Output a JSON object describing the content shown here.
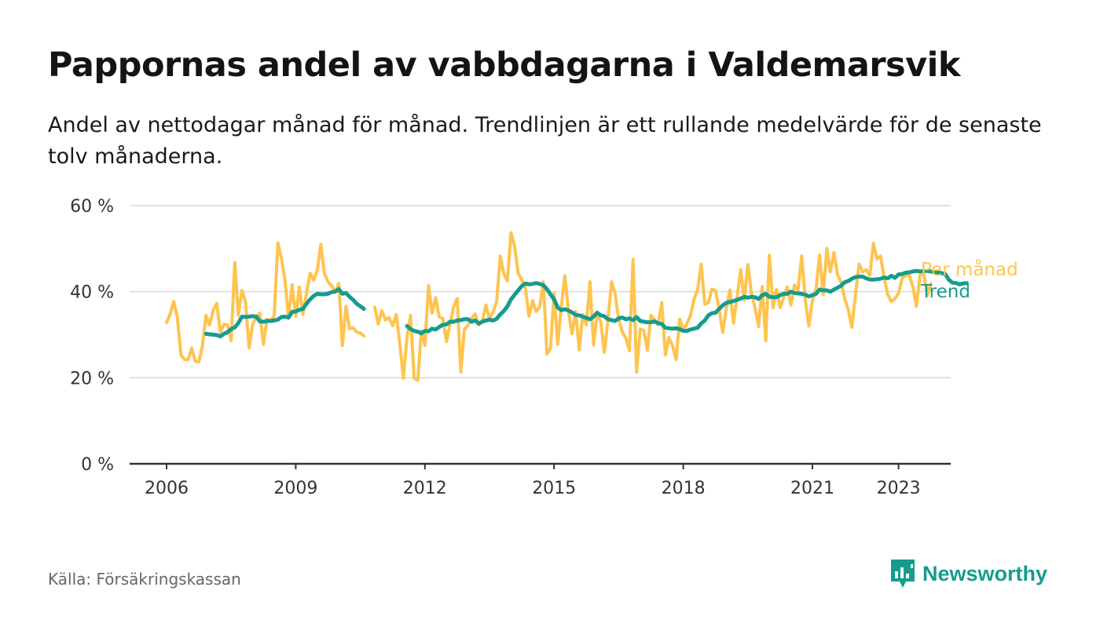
{
  "header": {
    "title": "Pappornas andel av vabbdagarna i Valdemarsvik",
    "subtitle": "Andel av nettodagar månad för månad. Trendlinjen är ett rullande medelvärde för de senaste tolv månaderna."
  },
  "footer": {
    "source": "Källa: Försäkringskassan",
    "brand": "Newsworthy",
    "brand_icon": "newsworthy-logo-icon"
  },
  "colors": {
    "monthly": "#fec44f",
    "trend": "#169c8e",
    "grid": "#d9d9d9",
    "axis": "#333333",
    "text": "#333333"
  },
  "chart_data": {
    "type": "line",
    "x_unit": "year (decimal, monthly)",
    "ylim": [
      0,
      60
    ],
    "yticks": [
      0,
      20,
      40,
      60
    ],
    "ytick_labels": [
      "0 %",
      "20 %",
      "40 %",
      "60 %"
    ],
    "xticks": [
      2006,
      2009,
      2012,
      2015,
      2018,
      2021,
      2023
    ],
    "xtick_labels": [
      "2006",
      "2009",
      "2012",
      "2015",
      "2018",
      "2021",
      "2023"
    ],
    "grid": "horizontal",
    "legend": "end-of-line labels (right)",
    "series": [
      {
        "name": "Per månad",
        "color": "#fec44f",
        "segments": [
          {
            "start_x": 2006.0,
            "step": 0.0833333,
            "values": [
              32.8,
              34.8,
              37.7,
              34.0,
              25.3,
              24.2,
              24.2,
              26.9,
              23.8,
              23.7,
              27.5,
              34.5,
              32.3,
              35.7,
              37.3,
              30.6,
              32.4,
              32.3,
              28.6,
              46.8,
              34.5,
              40.3,
              37.6,
              26.9,
              32.4,
              34.2,
              35.0,
              27.8,
              33.6,
              33.2,
              34.4,
              51.3,
              47.8,
              42.6,
              33.8,
              41.6,
              34.3,
              41.1,
              34.7,
              39.6,
              44.3,
              42.7,
              45.0,
              51.0,
              44.2,
              42.3,
              41.4,
              39.9,
              41.9,
              27.5,
              36.6,
              31.4,
              31.6,
              30.6,
              30.4,
              29.7
            ]
          },
          {
            "start_x": 2010.8333,
            "step": 0.0833333,
            "values": [
              36.4,
              32.5,
              35.6,
              33.4,
              34.0,
              32.1,
              34.7,
              28.0,
              19.9,
              29.4,
              34.5,
              19.9,
              19.4,
              30.8,
              27.5,
              41.4,
              35.0,
              38.6,
              34.1,
              33.8,
              28.4,
              32.4,
              36.5,
              38.4,
              21.3,
              31.2,
              32.2,
              33.8,
              34.8,
              32.2,
              33.3,
              36.9,
              33.7,
              35.3,
              37.7,
              48.3,
              44.1,
              42.5,
              53.7,
              50.5,
              44.3,
              42.7,
              40.9,
              34.3,
              37.9,
              35.4,
              36.4,
              42.3,
              25.5,
              26.8,
              39.6,
              27.8,
              36.4,
              43.7,
              35.4,
              30.2,
              35.4,
              26.5,
              34.7,
              32.3,
              42.3,
              27.6,
              34.7,
              33.0,
              25.9,
              33.3,
              42.3,
              39.5,
              33.6,
              30.6,
              29.2,
              26.3,
              47.5,
              21.3,
              31.3,
              31.0,
              26.4,
              34.5,
              33.4,
              32.3,
              37.5,
              25.3,
              29.3,
              27.4,
              24.2,
              33.6,
              31.2,
              32.5,
              34.4,
              38.2,
              40.5,
              46.4,
              37.1,
              37.5,
              40.6,
              40.2,
              36.0,
              30.5,
              36.2,
              40.4,
              32.7,
              38.7,
              45.1,
              38.0,
              46.3,
              39.6,
              36.3,
              31.9,
              41.2,
              28.6,
              48.5,
              36.3,
              40.5,
              36.3,
              38.6,
              41.1,
              36.9,
              41.5,
              40.4,
              48.3,
              38.1,
              32.0,
              38.0,
              40.6,
              48.5,
              39.3,
              50.0,
              44.6,
              49.1,
              43.9,
              42.2,
              38.4,
              35.7,
              31.7,
              39.4,
              46.4,
              44.6,
              45.1,
              43.8,
              51.2,
              47.6,
              48.3,
              43.1,
              39.3,
              37.7,
              38.4,
              39.6,
              43.2,
              43.7,
              43.8,
              41.1,
              36.6,
              43.8,
              44.4,
              39.1,
              41.9
            ]
          }
        ]
      },
      {
        "name": "Trend",
        "color": "#169c8e",
        "segments": [
          {
            "start_x": 2006.9167,
            "step": 0.0833333,
            "values": [
              30.2,
              30.1,
              30.0,
              29.9,
              29.6,
              30.2,
              30.6,
              31.3,
              31.7,
              32.7,
              34.2,
              34.1,
              34.2,
              34.3,
              34.2,
              33.1,
              33.0,
              33.2,
              33.2,
              33.3,
              33.5,
              34.1,
              34.2,
              34.0,
              35.3,
              35.4,
              35.8,
              36.0,
              37.2,
              38.2,
              39.0,
              39.5,
              39.4,
              39.4,
              39.5,
              39.9,
              40.0,
              40.6,
              39.5,
              39.7,
              38.8,
              38.1,
              37.2,
              36.6,
              36.0
            ]
          },
          {
            "start_x": 2011.5833,
            "step": 0.0833333,
            "values": [
              32.0,
              31.3,
              30.9,
              30.7,
              30.3,
              30.9,
              30.8,
              31.4,
              31.2,
              31.8,
              32.3,
              32.4,
              33.0,
              33.0,
              33.3,
              33.4,
              33.6,
              33.6,
              33.0,
              33.3,
              32.6,
              33.0,
              33.3,
              33.5,
              33.3,
              33.7,
              34.7,
              35.5,
              36.6,
              38.2,
              39.3,
              40.3,
              41.3,
              41.9,
              41.7,
              41.8,
              42.0,
              41.8,
              41.5,
              40.6,
              39.4,
              38.2,
              36.3,
              35.7,
              35.9,
              35.6,
              35.2,
              34.6,
              34.5,
              34.2,
              33.9,
              33.6,
              34.2,
              35.1,
              34.5,
              34.3,
              33.6,
              33.4,
              33.2,
              33.8,
              34.0,
              33.6,
              33.8,
              33.4,
              34.1,
              33.2,
              33.0,
              32.9,
              32.9,
              33.1,
              32.7,
              32.5,
              31.6,
              31.5,
              31.4,
              31.5,
              31.3,
              30.9,
              30.9,
              31.2,
              31.4,
              31.6,
              32.6,
              33.3,
              34.5,
              35.0,
              35.1,
              36.0,
              36.8,
              37.4,
              37.6,
              37.8,
              38.1,
              38.4,
              38.8,
              38.6,
              38.8,
              38.7,
              38.3,
              39.2,
              39.5,
              38.8,
              38.7,
              38.7,
              39.2,
              39.5,
              39.5,
              40.0,
              39.7,
              39.6,
              39.5,
              39.3,
              38.9,
              39.2,
              39.5,
              40.5,
              40.3,
              40.3,
              40.0,
              40.5,
              40.9,
              41.4,
              42.2,
              42.5,
              43.0,
              43.4,
              43.5,
              43.5,
              43.1,
              42.8,
              42.8,
              42.9,
              43.0,
              43.3,
              43.1,
              43.7,
              43.2,
              44.0,
              44.1,
              44.4,
              44.5,
              44.7,
              44.8,
              44.7,
              44.8,
              44.8,
              44.7,
              44.5,
              44.4,
              44.3,
              44.1,
              42.8,
              42.1,
              42.0,
              41.7,
              41.9,
              42.0
            ]
          }
        ]
      }
    ]
  }
}
